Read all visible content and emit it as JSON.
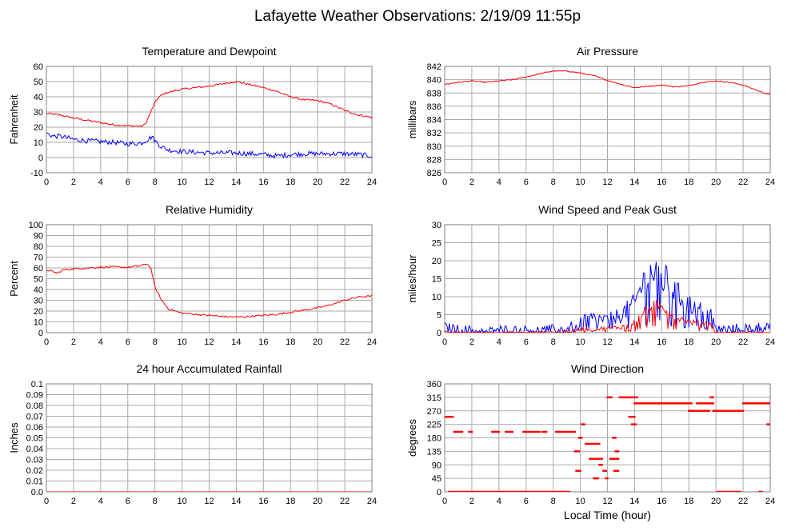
{
  "page_title": "Lafayette Weather Observations: 2/19/09 11:55p",
  "footer_xlabel": "Local Time (hour)",
  "colors": {
    "primary": "#ff0000",
    "secondary": "#0000ff",
    "grid": "#aaaaaa",
    "frame": "#808080"
  },
  "chart_data": [
    {
      "id": "temp",
      "type": "line",
      "title": "Temperature and Dewpoint",
      "xlabel": "",
      "ylabel": "Fahrenheit",
      "xlim": [
        0,
        24
      ],
      "ylim": [
        -10,
        60
      ],
      "xticks": [
        0,
        2,
        4,
        6,
        8,
        10,
        12,
        14,
        16,
        18,
        20,
        22,
        24
      ],
      "yticks": [
        -10,
        0,
        10,
        20,
        30,
        40,
        50,
        60
      ],
      "grid": true,
      "series": [
        {
          "color": "#ff0000",
          "jitter": 0.6,
          "x": [
            0,
            1,
            2,
            3,
            4,
            5,
            6,
            7,
            7.3,
            7.7,
            8,
            8.3,
            8.7,
            9,
            10,
            11,
            12,
            13,
            14,
            15,
            16,
            17,
            18,
            19,
            20,
            21,
            22,
            23,
            24
          ],
          "y": [
            29,
            28,
            26,
            24.5,
            23,
            21.5,
            21,
            20.5,
            22,
            30,
            36,
            40,
            42,
            43,
            45,
            46,
            47,
            48.5,
            50,
            48,
            46,
            43.5,
            40,
            38,
            37.5,
            35,
            31,
            28,
            26.5
          ]
        },
        {
          "color": "#0000ff",
          "jitter": 1.6,
          "x": [
            0,
            0.5,
            1,
            2,
            3,
            4,
            5,
            6,
            7,
            7.5,
            7.8,
            8,
            8.5,
            9,
            10,
            11,
            12,
            13,
            14,
            15,
            16,
            17,
            18,
            19,
            20,
            21,
            22,
            23,
            24
          ],
          "y": [
            16,
            14,
            14,
            12,
            11,
            10.5,
            10,
            9,
            9.5,
            12,
            14,
            11,
            7,
            5,
            4,
            3.5,
            3,
            3,
            3,
            2.5,
            2,
            1,
            2,
            2.5,
            2.5,
            2.5,
            2.5,
            2,
            1
          ]
        }
      ]
    },
    {
      "id": "pressure",
      "type": "line",
      "title": "Air Pressure",
      "xlabel": "",
      "ylabel": "millibars",
      "xlim": [
        0,
        24
      ],
      "ylim": [
        826,
        842
      ],
      "xticks": [
        0,
        2,
        4,
        6,
        8,
        10,
        12,
        14,
        16,
        18,
        20,
        22,
        24
      ],
      "yticks": [
        826,
        828,
        830,
        832,
        834,
        836,
        838,
        840,
        842
      ],
      "grid": true,
      "series": [
        {
          "color": "#ff0000",
          "jitter": 0.08,
          "x": [
            0,
            1,
            2,
            3,
            4,
            5,
            6,
            7,
            8,
            9,
            10,
            11,
            12,
            13,
            14,
            15,
            16,
            17,
            18,
            19,
            20,
            21,
            22,
            23,
            24
          ],
          "y": [
            839.3,
            839.6,
            839.8,
            839.6,
            839.8,
            840,
            840.4,
            840.9,
            841.3,
            841.3,
            841,
            840.6,
            839.9,
            839.3,
            838.8,
            839,
            839.2,
            838.9,
            839.1,
            839.6,
            839.8,
            839.6,
            839.2,
            838.4,
            837.7
          ]
        }
      ]
    },
    {
      "id": "humidity",
      "type": "line",
      "title": "Relative Humidity",
      "xlabel": "",
      "ylabel": "Percent",
      "xlim": [
        0,
        24
      ],
      "ylim": [
        0,
        100
      ],
      "xticks": [
        0,
        2,
        4,
        6,
        8,
        10,
        12,
        14,
        16,
        18,
        20,
        22,
        24
      ],
      "yticks": [
        0,
        10,
        20,
        30,
        40,
        50,
        60,
        70,
        80,
        90,
        100
      ],
      "grid": true,
      "series": [
        {
          "color": "#ff0000",
          "jitter": 0.8,
          "x": [
            0,
            0.4,
            0.8,
            1.2,
            2,
            3,
            4,
            5,
            6,
            7,
            7.4,
            7.7,
            8,
            8.5,
            9,
            10,
            11,
            12,
            13,
            14,
            15,
            16,
            17,
            18,
            19,
            20,
            21,
            22,
            23,
            24
          ],
          "y": [
            58,
            57,
            55,
            58,
            59,
            60,
            60.5,
            61,
            60.5,
            62,
            64,
            60,
            42,
            30,
            22,
            18,
            17,
            16,
            15,
            14.5,
            15,
            16,
            17,
            19,
            21,
            23,
            26,
            30,
            33,
            34
          ]
        }
      ]
    },
    {
      "id": "wind",
      "type": "line",
      "title": "Wind Speed and Peak Gust",
      "xlabel": "",
      "ylabel": "miles/hour",
      "xlim": [
        0,
        24
      ],
      "ylim": [
        0,
        30
      ],
      "xticks": [
        0,
        2,
        4,
        6,
        8,
        10,
        12,
        14,
        16,
        18,
        20,
        22,
        24
      ],
      "yticks": [
        0,
        5,
        10,
        15,
        20,
        25,
        30
      ],
      "grid": true,
      "series": [
        {
          "color": "#0000ff",
          "mode": "spiky",
          "jitter": 2.5,
          "x": [
            0,
            1,
            2,
            3,
            4,
            5,
            6,
            7,
            8,
            9,
            9.5,
            10,
            11,
            12,
            13,
            14,
            14.5,
            15,
            15.5,
            16,
            16.5,
            17,
            18,
            19,
            19.5,
            19.8,
            20,
            21,
            22,
            23,
            24
          ],
          "y": [
            1.5,
            1,
            0.8,
            0.3,
            1,
            0.8,
            0.8,
            0.8,
            1,
            1,
            2,
            3.5,
            4,
            3.5,
            5,
            8,
            13,
            16,
            17,
            15,
            14,
            11,
            8,
            6,
            8,
            3,
            1,
            1,
            1.5,
            1.5,
            2
          ]
        },
        {
          "color": "#ff0000",
          "mode": "spiky",
          "jitter": 1.1,
          "x": [
            0,
            2,
            4,
            6,
            8,
            9.5,
            10,
            11,
            12,
            13,
            14,
            14.5,
            15,
            15.5,
            16,
            16.5,
            17,
            18,
            19,
            19.5,
            20,
            24
          ],
          "y": [
            0,
            0,
            0,
            0,
            0,
            0.5,
            1,
            1,
            1.2,
            1.5,
            3,
            5,
            7,
            8,
            7,
            6,
            4.5,
            3,
            2.5,
            3,
            0,
            0
          ]
        }
      ]
    },
    {
      "id": "rain",
      "type": "line",
      "title": "24 hour Accumulated Rainfall",
      "xlabel": "",
      "ylabel": "Inches",
      "xlim": [
        0,
        24
      ],
      "ylim": [
        0,
        0.1
      ],
      "xticks": [
        0,
        2,
        4,
        6,
        8,
        10,
        12,
        14,
        16,
        18,
        20,
        22,
        24
      ],
      "yticks": [
        0.0,
        0.01,
        0.02,
        0.03,
        0.04,
        0.05,
        0.06,
        0.07,
        0.08,
        0.09,
        0.1
      ],
      "ytick_labels": [
        "0.0",
        "0.01",
        "0.02",
        "0.03",
        "0.04",
        "0.05",
        "0.06",
        "0.07",
        "0.08",
        "0.09",
        "0.1"
      ],
      "grid": true,
      "series": [
        {
          "color": "#ff0000",
          "jitter": 0,
          "x": [
            0,
            24
          ],
          "y": [
            0,
            0
          ]
        }
      ]
    },
    {
      "id": "direction",
      "type": "scatter",
      "title": "Wind Direction",
      "xlabel": "Local Time (hour)",
      "ylabel": "degrees",
      "xlim": [
        0,
        24
      ],
      "ylim": [
        0,
        360
      ],
      "xticks": [
        0,
        2,
        4,
        6,
        8,
        10,
        12,
        14,
        16,
        18,
        20,
        22,
        24
      ],
      "yticks": [
        0,
        45,
        90,
        135,
        180,
        225,
        270,
        315,
        360
      ],
      "grid": true,
      "series": [
        {
          "color": "#ff0000",
          "segments": [
            {
              "x0": 0.0,
              "x1": 0.6,
              "y": 250
            },
            {
              "x0": 0.3,
              "x1": 2.2,
              "y": 0
            },
            {
              "x0": 0.7,
              "x1": 1.3,
              "y": 200
            },
            {
              "x0": 1.8,
              "x1": 2.0,
              "y": 200
            },
            {
              "x0": 2.3,
              "x1": 9.2,
              "y": 0
            },
            {
              "x0": 3.5,
              "x1": 4.0,
              "y": 200
            },
            {
              "x0": 4.5,
              "x1": 5.0,
              "y": 200
            },
            {
              "x0": 5.8,
              "x1": 7.0,
              "y": 200
            },
            {
              "x0": 7.2,
              "x1": 7.5,
              "y": 200
            },
            {
              "x0": 8.2,
              "x1": 9.6,
              "y": 200
            },
            {
              "x0": 9.6,
              "x1": 9.9,
              "y": 135
            },
            {
              "x0": 9.7,
              "x1": 10.0,
              "y": 70
            },
            {
              "x0": 9.9,
              "x1": 10.1,
              "y": 180
            },
            {
              "x0": 10.1,
              "x1": 10.3,
              "y": 225
            },
            {
              "x0": 10.4,
              "x1": 11.4,
              "y": 160
            },
            {
              "x0": 10.7,
              "x1": 11.6,
              "y": 110
            },
            {
              "x0": 11.0,
              "x1": 11.3,
              "y": 45
            },
            {
              "x0": 11.4,
              "x1": 11.6,
              "y": 90
            },
            {
              "x0": 11.7,
              "x1": 11.9,
              "y": 70
            },
            {
              "x0": 11.9,
              "x1": 12.0,
              "y": 45
            },
            {
              "x0": 12.0,
              "x1": 12.3,
              "y": 315
            },
            {
              "x0": 12.2,
              "x1": 12.8,
              "y": 110
            },
            {
              "x0": 12.4,
              "x1": 12.6,
              "y": 180
            },
            {
              "x0": 12.5,
              "x1": 12.8,
              "y": 70
            },
            {
              "x0": 12.6,
              "x1": 12.8,
              "y": 135
            },
            {
              "x0": 12.9,
              "x1": 14.2,
              "y": 315
            },
            {
              "x0": 13.6,
              "x1": 14.0,
              "y": 250
            },
            {
              "x0": 13.8,
              "x1": 14.1,
              "y": 225
            },
            {
              "x0": 14.0,
              "x1": 18.2,
              "y": 295
            },
            {
              "x0": 18.0,
              "x1": 19.5,
              "y": 270
            },
            {
              "x0": 18.6,
              "x1": 19.8,
              "y": 295
            },
            {
              "x0": 19.6,
              "x1": 19.8,
              "y": 315
            },
            {
              "x0": 19.8,
              "x1": 22.0,
              "y": 270
            },
            {
              "x0": 20.1,
              "x1": 21.8,
              "y": 0
            },
            {
              "x0": 22.0,
              "x1": 24.0,
              "y": 295
            },
            {
              "x0": 23.2,
              "x1": 23.4,
              "y": 0
            },
            {
              "x0": 23.8,
              "x1": 24.0,
              "y": 225
            }
          ]
        }
      ]
    }
  ]
}
